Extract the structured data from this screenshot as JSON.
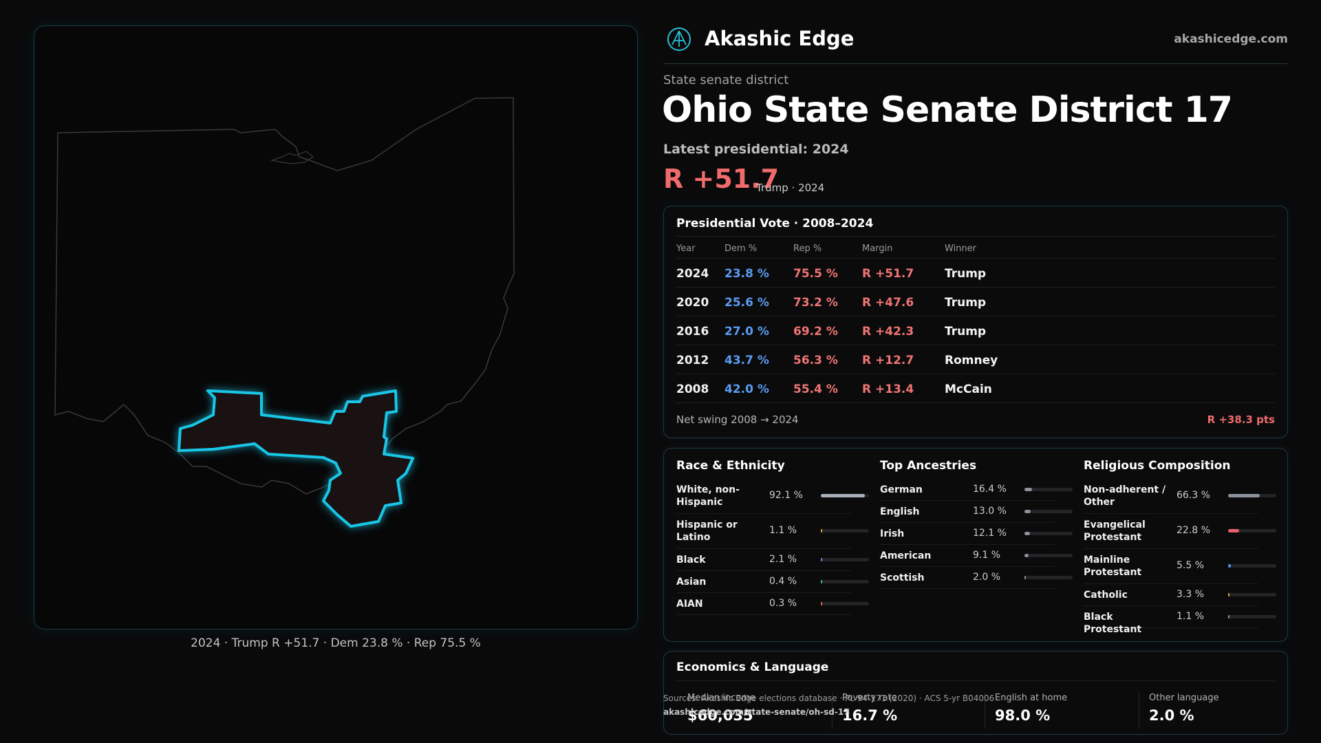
{
  "brand": {
    "name": "Akashic Edge",
    "site": "akashicedge.com",
    "logo_icon": "emblem-icon"
  },
  "district": {
    "kicker": "State senate district",
    "title": "Ohio State Senate District 17",
    "latest_label": "Latest presidential: 2024",
    "margin": "R +51.7",
    "margin_sub": "Trump · 2024"
  },
  "map": {
    "caption": "2024 · Trump R +51.7 · Dem 23.8 % · Rep 75.5 %",
    "highlight_color": "#19c6e6"
  },
  "presidential": {
    "title": "Presidential Vote · 2008–2024",
    "headers": {
      "year": "Year",
      "dem": "Dem %",
      "rep": "Rep %",
      "margin": "Margin",
      "winner": "Winner"
    },
    "rows": [
      {
        "year": "2024",
        "dem": "23.8 %",
        "rep": "75.5 %",
        "margin": "R +51.7",
        "winner": "Trump"
      },
      {
        "year": "2020",
        "dem": "25.6 %",
        "rep": "73.2 %",
        "margin": "R +47.6",
        "winner": "Trump"
      },
      {
        "year": "2016",
        "dem": "27.0 %",
        "rep": "69.2 %",
        "margin": "R +42.3",
        "winner": "Trump"
      },
      {
        "year": "2012",
        "dem": "43.7 %",
        "rep": "56.3 %",
        "margin": "R +12.7",
        "winner": "Romney"
      },
      {
        "year": "2008",
        "dem": "42.0 %",
        "rep": "55.4 %",
        "margin": "R +13.4",
        "winner": "McCain"
      }
    ],
    "swing_label": "Net swing 2008 → 2024",
    "swing_value": "R +38.3 pts"
  },
  "race": {
    "title": "Race & Ethnicity",
    "rows": [
      {
        "label": "White, non-Hispanic",
        "value": "92.1 %",
        "pct": 92.1,
        "color": "#a9b0b8"
      },
      {
        "label": "Hispanic or Latino",
        "value": "1.1 %",
        "pct": 1.1,
        "color": "#e0913a"
      },
      {
        "label": "Black",
        "value": "2.1 %",
        "pct": 2.1,
        "color": "#6d7de8"
      },
      {
        "label": "Asian",
        "value": "0.4 %",
        "pct": 0.4,
        "color": "#3fb98f"
      },
      {
        "label": "AIAN",
        "value": "0.3 %",
        "pct": 0.3,
        "color": "#d06a4a"
      }
    ]
  },
  "ancestry": {
    "title": "Top Ancestries",
    "rows": [
      {
        "label": "German",
        "value": "16.4 %",
        "pct": 16.4,
        "color": "#8c939b"
      },
      {
        "label": "English",
        "value": "13.0 %",
        "pct": 13.0,
        "color": "#8c939b"
      },
      {
        "label": "Irish",
        "value": "12.1 %",
        "pct": 12.1,
        "color": "#8c939b"
      },
      {
        "label": "American",
        "value": "9.1 %",
        "pct": 9.1,
        "color": "#8c939b"
      },
      {
        "label": "Scottish",
        "value": "2.0 %",
        "pct": 2.0,
        "color": "#8c939b"
      }
    ]
  },
  "religion": {
    "title": "Religious Composition",
    "rows": [
      {
        "label": "Non-adherent / Other",
        "value": "66.3 %",
        "pct": 66.3,
        "color": "#8c939b"
      },
      {
        "label": "Evangelical Protestant",
        "value": "22.8 %",
        "pct": 22.8,
        "color": "#e8606a"
      },
      {
        "label": "Mainline Protestant",
        "value": "5.5 %",
        "pct": 5.5,
        "color": "#4f8fe6"
      },
      {
        "label": "Catholic",
        "value": "3.3 %",
        "pct": 3.3,
        "color": "#e0a23a"
      },
      {
        "label": "Black Protestant",
        "value": "1.1 %",
        "pct": 1.1,
        "color": "#8c939b"
      }
    ]
  },
  "economics": {
    "title": "Economics & Language",
    "stats": [
      {
        "label": "Median income",
        "value": "$60,035"
      },
      {
        "label": "Poverty rate",
        "value": "16.7 %"
      },
      {
        "label": "English at home",
        "value": "98.0 %"
      },
      {
        "label": "Other language",
        "value": "2.0 %"
      }
    ]
  },
  "source": {
    "line": "Sources: Akashic Edge elections database · PL 94-171 (2020) · ACS 5-yr B04006",
    "url": "akashicedge.com/state-senate/oh-sd-17"
  }
}
